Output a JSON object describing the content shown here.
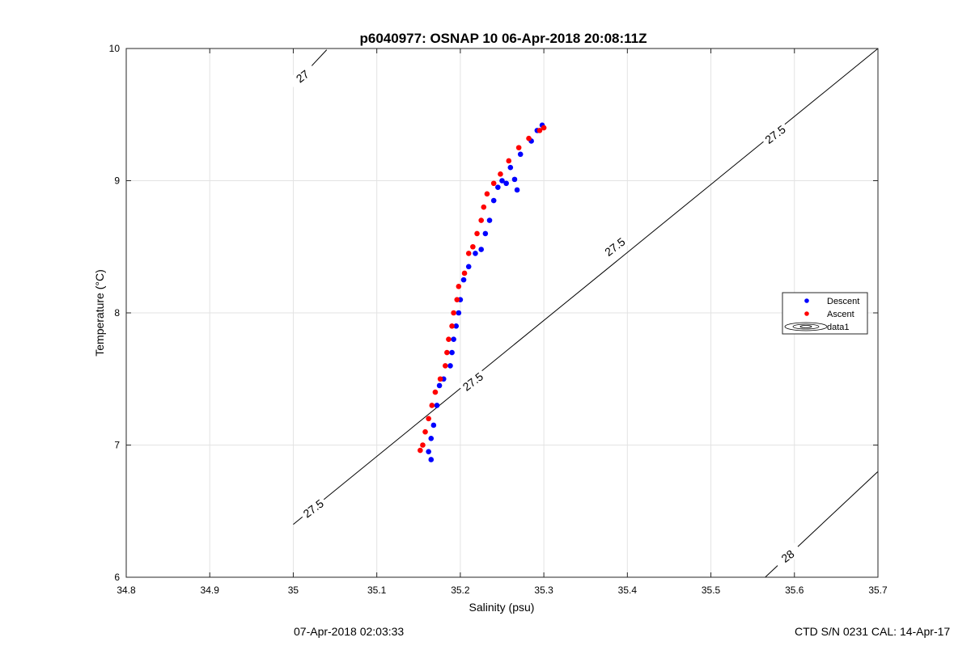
{
  "chart_data": {
    "type": "scatter",
    "title": "p6040977: OSNAP 10 06-Apr-2018 20:08:11Z",
    "xlabel": "Salinity (psu)",
    "ylabel": "Temperature (°C)",
    "xlim": [
      34.8,
      35.7
    ],
    "ylim": [
      6,
      10
    ],
    "xticks": [
      "34.8",
      "34.9",
      "35",
      "35.1",
      "35.2",
      "35.3",
      "35.4",
      "35.5",
      "35.6",
      "35.7"
    ],
    "yticks": [
      "6",
      "7",
      "8",
      "9",
      "10"
    ],
    "grid": true,
    "legend": {
      "placement": "right",
      "entries": [
        "Descent",
        "Ascent",
        "data1"
      ]
    },
    "series": [
      {
        "name": "Descent",
        "color": "#0000ff",
        "points": [
          [
            35.165,
            6.89
          ],
          [
            35.162,
            6.95
          ],
          [
            35.165,
            7.05
          ],
          [
            35.168,
            7.15
          ],
          [
            35.172,
            7.3
          ],
          [
            35.175,
            7.45
          ],
          [
            35.18,
            7.5
          ],
          [
            35.188,
            7.6
          ],
          [
            35.19,
            7.7
          ],
          [
            35.192,
            7.8
          ],
          [
            35.195,
            7.9
          ],
          [
            35.198,
            8.0
          ],
          [
            35.2,
            8.1
          ],
          [
            35.204,
            8.25
          ],
          [
            35.21,
            8.35
          ],
          [
            35.218,
            8.45
          ],
          [
            35.225,
            8.48
          ],
          [
            35.23,
            8.6
          ],
          [
            35.235,
            8.7
          ],
          [
            35.24,
            8.85
          ],
          [
            35.245,
            8.95
          ],
          [
            35.25,
            9.0
          ],
          [
            35.255,
            8.98
          ],
          [
            35.265,
            9.01
          ],
          [
            35.268,
            8.93
          ],
          [
            35.26,
            9.1
          ],
          [
            35.272,
            9.2
          ],
          [
            35.285,
            9.3
          ],
          [
            35.292,
            9.38
          ],
          [
            35.298,
            9.42
          ]
        ]
      },
      {
        "name": "Ascent",
        "color": "#ff0000",
        "points": [
          [
            35.152,
            6.96
          ],
          [
            35.155,
            7.0
          ],
          [
            35.158,
            7.1
          ],
          [
            35.162,
            7.2
          ],
          [
            35.166,
            7.3
          ],
          [
            35.17,
            7.4
          ],
          [
            35.176,
            7.5
          ],
          [
            35.182,
            7.6
          ],
          [
            35.184,
            7.7
          ],
          [
            35.186,
            7.8
          ],
          [
            35.19,
            7.9
          ],
          [
            35.192,
            8.0
          ],
          [
            35.196,
            8.1
          ],
          [
            35.198,
            8.2
          ],
          [
            35.205,
            8.3
          ],
          [
            35.21,
            8.45
          ],
          [
            35.215,
            8.5
          ],
          [
            35.22,
            8.6
          ],
          [
            35.225,
            8.7
          ],
          [
            35.228,
            8.8
          ],
          [
            35.232,
            8.9
          ],
          [
            35.24,
            8.98
          ],
          [
            35.248,
            9.05
          ],
          [
            35.258,
            9.15
          ],
          [
            35.27,
            9.25
          ],
          [
            35.282,
            9.32
          ],
          [
            35.295,
            9.38
          ],
          [
            35.3,
            9.4
          ]
        ]
      }
    ],
    "isopycnals": [
      {
        "label": "27",
        "from": [
          35.0,
          9.72
        ],
        "to": [
          35.04,
          9.99
        ]
      },
      {
        "label": "27.5",
        "from": [
          35.0,
          6.4
        ],
        "to": [
          35.7,
          10.0
        ]
      },
      {
        "label": "28",
        "from": [
          35.565,
          6.0
        ],
        "to": [
          35.7,
          6.8
        ]
      }
    ],
    "isopycnal_labels": [
      {
        "text": "27",
        "at": [
          35.011,
          9.79
        ]
      },
      {
        "text": "27.5",
        "at": [
          35.024,
          6.52
        ]
      },
      {
        "text": "27.5",
        "at": [
          35.215,
          7.48
        ]
      },
      {
        "text": "27.5",
        "at": [
          35.385,
          8.5
        ]
      },
      {
        "text": "27.5",
        "at": [
          35.577,
          9.35
        ]
      },
      {
        "text": "28",
        "at": [
          35.592,
          6.16
        ]
      }
    ]
  },
  "footer": {
    "timestamp": "07-Apr-2018 02:03:33",
    "ctd_info": "CTD S/N 0231  CAL: 14-Apr-17"
  }
}
